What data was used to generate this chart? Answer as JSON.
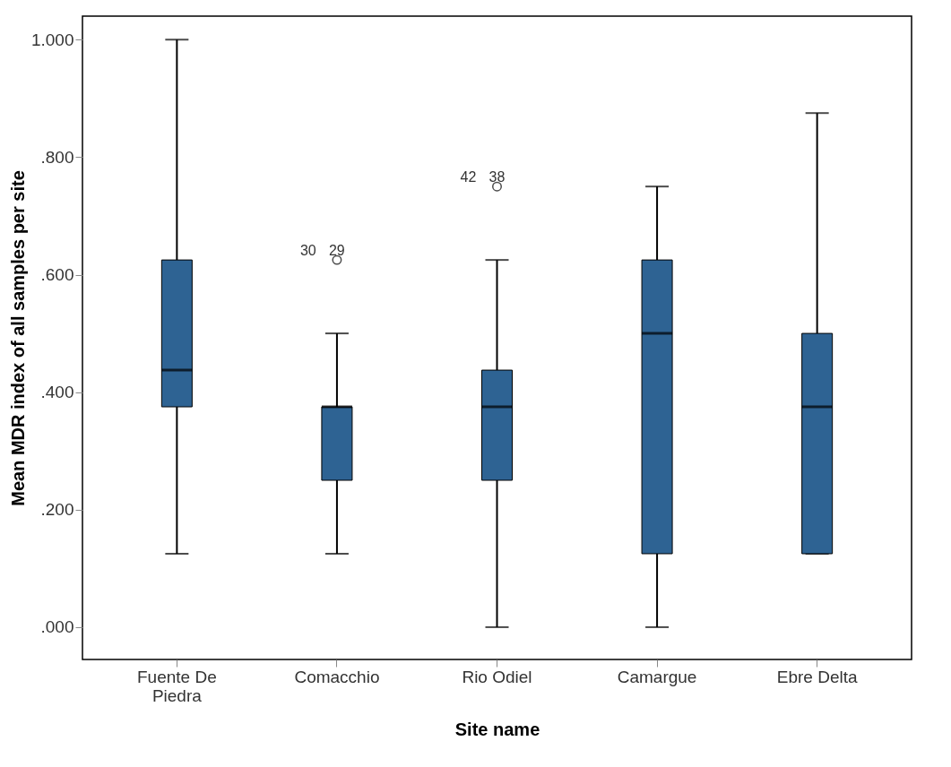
{
  "chart_data": {
    "type": "box",
    "xlabel": "Site name",
    "ylabel": "Mean MDR index of all samples per site",
    "categories": [
      "Fuente De Piedra",
      "Comacchio",
      "Rio Odiel",
      "Camargue",
      "Ebre Delta"
    ],
    "color": "#2e6393",
    "boxes": [
      {
        "low": 0.125,
        "q1": 0.375,
        "median": 0.4375,
        "q3": 0.625,
        "high": 1.0
      },
      {
        "low": 0.125,
        "q1": 0.25,
        "median": 0.375,
        "q3": 0.375,
        "high": 0.5,
        "outliers": [
          0.625
        ]
      },
      {
        "low": 0.0,
        "q1": 0.25,
        "median": 0.375,
        "q3": 0.4375,
        "high": 0.625,
        "outliers": [
          0.75
        ]
      },
      {
        "low": 0.0,
        "q1": 0.125,
        "median": 0.5,
        "q3": 0.625,
        "high": 0.75
      },
      {
        "low": 0.125,
        "q1": 0.125,
        "median": 0.375,
        "q3": 0.5,
        "high": 0.875
      }
    ],
    "ylim": [
      -0.055,
      1.04
    ],
    "yticks": [
      {
        "value": 0,
        "label": ".000"
      },
      {
        "value": 0.2,
        "label": ".200"
      },
      {
        "value": 0.4,
        "label": ".400"
      },
      {
        "value": 0.6,
        "label": ".600"
      },
      {
        "value": 0.8,
        "label": ".800"
      },
      {
        "value": 1,
        "label": "1.000"
      }
    ],
    "grid": false,
    "annotations": [
      "30",
      "29",
      "42",
      "38"
    ]
  }
}
